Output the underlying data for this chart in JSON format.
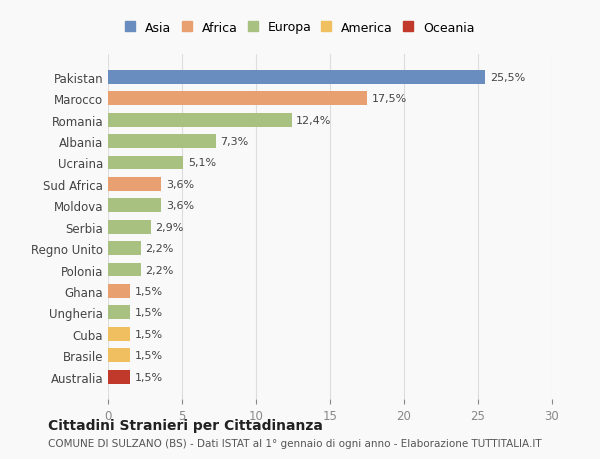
{
  "categories": [
    "Australia",
    "Brasile",
    "Cuba",
    "Ungheria",
    "Ghana",
    "Polonia",
    "Regno Unito",
    "Serbia",
    "Moldova",
    "Sud Africa",
    "Ucraina",
    "Albania",
    "Romania",
    "Marocco",
    "Pakistan"
  ],
  "values": [
    1.5,
    1.5,
    1.5,
    1.5,
    1.5,
    2.2,
    2.2,
    2.9,
    3.6,
    3.6,
    5.1,
    7.3,
    12.4,
    17.5,
    25.5
  ],
  "colors": [
    "#c0392b",
    "#f0c060",
    "#f0c060",
    "#a8c080",
    "#e8a070",
    "#a8c080",
    "#a8c080",
    "#a8c080",
    "#a8c080",
    "#e8a070",
    "#a8c080",
    "#a8c080",
    "#a8c080",
    "#e8a070",
    "#6a8dc0"
  ],
  "labels": [
    "1,5%",
    "1,5%",
    "1,5%",
    "1,5%",
    "1,5%",
    "2,2%",
    "2,2%",
    "2,9%",
    "3,6%",
    "3,6%",
    "5,1%",
    "7,3%",
    "12,4%",
    "17,5%",
    "25,5%"
  ],
  "legend_labels": [
    "Asia",
    "Africa",
    "Europa",
    "America",
    "Oceania"
  ],
  "legend_colors": [
    "#6a8dc0",
    "#e8a070",
    "#a8c080",
    "#f0c060",
    "#c0392b"
  ],
  "title": "Cittadini Stranieri per Cittadinanza",
  "subtitle": "COMUNE DI SULZANO (BS) - Dati ISTAT al 1° gennaio di ogni anno - Elaborazione TUTTITALIA.IT",
  "xlim": [
    0,
    30
  ],
  "xticks": [
    0,
    5,
    10,
    15,
    20,
    25,
    30
  ],
  "background_color": "#f9f9f9",
  "grid_color": "#dddddd",
  "bar_height": 0.65
}
